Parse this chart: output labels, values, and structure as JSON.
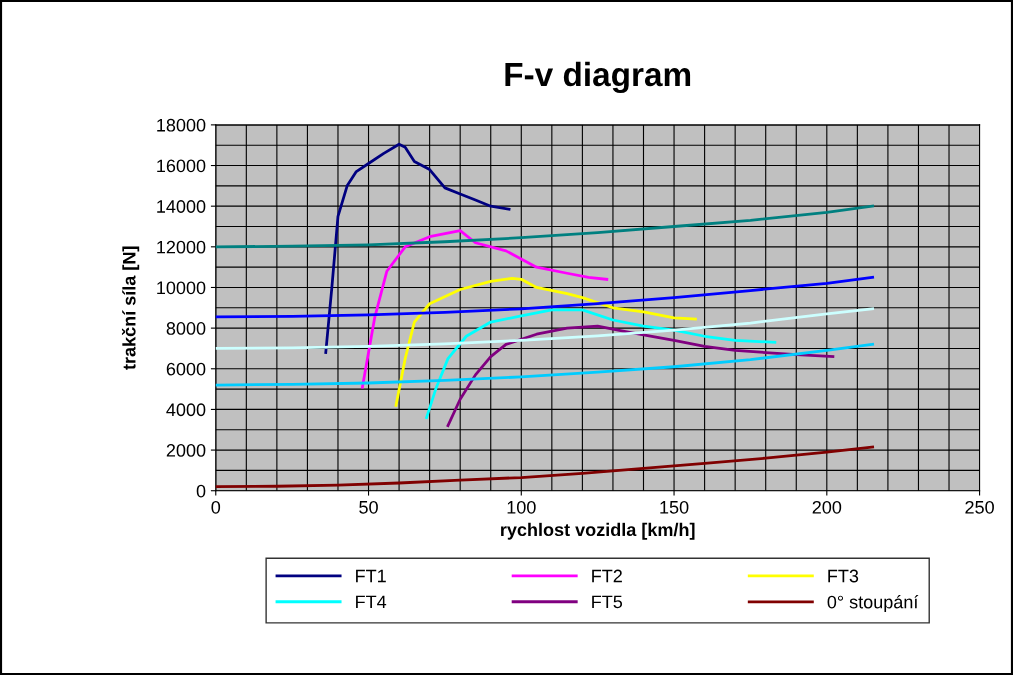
{
  "chart_data": {
    "type": "line",
    "title": "F-v diagram",
    "xlabel": "rychlost vozidla [km/h]",
    "ylabel": "trakční síla [N]",
    "xlim": [
      0,
      250
    ],
    "xticks": [
      0,
      50,
      100,
      150,
      200,
      250
    ],
    "ylim": [
      0,
      18000
    ],
    "yticks": [
      0,
      2000,
      4000,
      6000,
      8000,
      10000,
      12000,
      14000,
      16000,
      18000
    ],
    "grid": true,
    "legend": "bottom",
    "marker": "none",
    "line_style": "solid",
    "series": [
      {
        "name": "FT1",
        "color": "#000080",
        "x": [
          36,
          38,
          40,
          43,
          46,
          50,
          55,
          60,
          62,
          65,
          70,
          75,
          80,
          85,
          90,
          96
        ],
        "values": [
          6800,
          10000,
          13500,
          15000,
          15700,
          16100,
          16600,
          17050,
          16900,
          16200,
          15800,
          14900,
          14600,
          14300,
          14000,
          13850
        ]
      },
      {
        "name": "FT2",
        "color": "#ff00ff",
        "x": [
          48,
          52,
          56,
          62,
          70,
          80,
          85,
          95,
          105,
          115,
          122,
          128
        ],
        "values": [
          5100,
          8500,
          10800,
          12000,
          12500,
          12800,
          12200,
          11800,
          11000,
          10700,
          10500,
          10400
        ]
      },
      {
        "name": "FT3",
        "color": "#ffff00",
        "x": [
          59,
          62,
          65,
          70,
          80,
          90,
          97,
          100,
          105,
          115,
          120,
          130,
          140,
          150,
          157
        ],
        "values": [
          4200,
          6500,
          8300,
          9200,
          9900,
          10300,
          10450,
          10400,
          10000,
          9700,
          9500,
          9000,
          8800,
          8500,
          8450
        ]
      },
      {
        "name": "FT4",
        "color": "#00ffff",
        "x": [
          69,
          72,
          76,
          82,
          90,
          100,
          110,
          120,
          130,
          140,
          150,
          160,
          170,
          183
        ],
        "values": [
          3600,
          5000,
          6500,
          7600,
          8300,
          8600,
          8900,
          8900,
          8400,
          8100,
          7900,
          7600,
          7400,
          7300
        ]
      },
      {
        "name": "FT5",
        "color": "#800080",
        "x": [
          76,
          80,
          85,
          90,
          95,
          105,
          115,
          125,
          135,
          150,
          160,
          170,
          180,
          190,
          202
        ],
        "values": [
          3200,
          4500,
          5700,
          6600,
          7200,
          7700,
          8000,
          8100,
          7800,
          7400,
          7100,
          6900,
          6800,
          6700,
          6600
        ]
      },
      {
        "name": "0° stoupání",
        "color": "#800000",
        "x": [
          0,
          20,
          40,
          60,
          80,
          100,
          120,
          140,
          160,
          180,
          200,
          215
        ],
        "values": [
          200,
          220,
          280,
          380,
          520,
          650,
          850,
          1100,
          1350,
          1600,
          1900,
          2150
        ]
      },
      {
        "color": "#008080",
        "x": [
          0,
          25,
          50,
          75,
          100,
          125,
          150,
          175,
          200,
          215
        ],
        "values": [
          12000,
          12030,
          12100,
          12250,
          12450,
          12700,
          13000,
          13300,
          13700,
          14000
        ]
      },
      {
        "color": "#0000ff",
        "x": [
          0,
          25,
          50,
          75,
          100,
          125,
          150,
          175,
          200,
          215
        ],
        "values": [
          8550,
          8580,
          8650,
          8780,
          8950,
          9200,
          9500,
          9850,
          10200,
          10500
        ]
      },
      {
        "color": "#ccffff",
        "x": [
          0,
          25,
          50,
          75,
          100,
          125,
          150,
          175,
          200,
          215
        ],
        "values": [
          7000,
          7030,
          7100,
          7230,
          7400,
          7620,
          7900,
          8250,
          8700,
          8950
        ]
      },
      {
        "color": "#00ccff",
        "x": [
          0,
          25,
          50,
          75,
          100,
          125,
          150,
          175,
          200,
          215
        ],
        "values": [
          5200,
          5230,
          5300,
          5430,
          5600,
          5830,
          6100,
          6450,
          6900,
          7200
        ]
      }
    ]
  }
}
